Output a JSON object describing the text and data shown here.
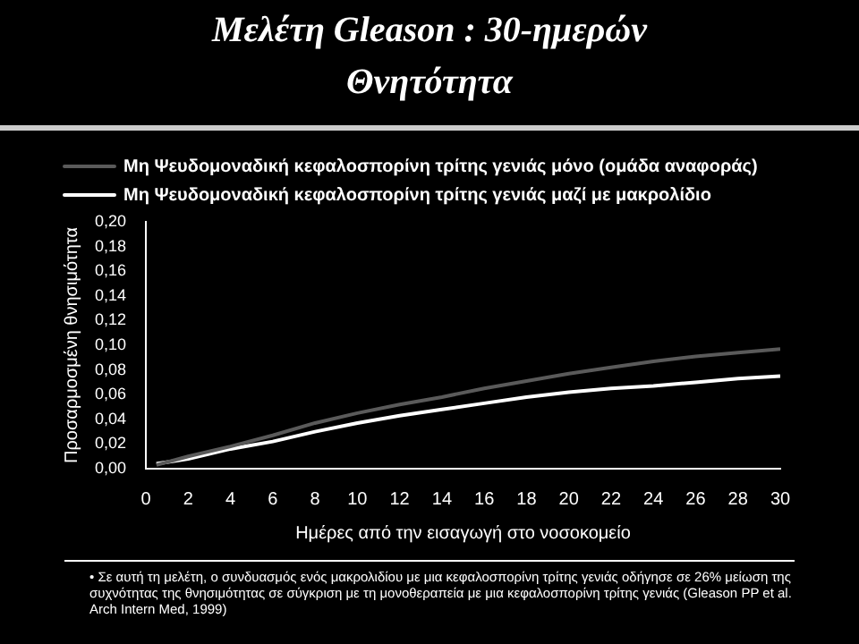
{
  "chart_data": {
    "type": "line",
    "title": "Μελέτη Gleason : 30-ημερών",
    "subtitle": "Θνητότητα",
    "xlabel": "Ημέρες από την εισαγωγή στο νοσοκομείο",
    "ylabel": "Προσαρμοσμένη θνησιμότητα",
    "annotations": [
      "• Σε αυτή τη μελέτη, ο συνδυασμός ενός μακρολιδίου με μια κεφαλοσπορίνη τρίτης γενιάς οδήγησε σε 26% μείωση της συχνότητας της θνησιμότητας σε σύγκριση με τη μονοθεραπεία με μια κεφαλοσπορίνη τρίτης γενιάς (Gleason PP et al. Arch Intern Med, 1999)"
    ],
    "x": [
      0.5,
      2,
      4,
      6,
      8,
      10,
      12,
      14,
      16,
      18,
      20,
      22,
      24,
      26,
      28,
      30
    ],
    "series": [
      {
        "name": "Μη Ψευδομοναδική κεφαλοσπορίνη τρίτης γενιάς μόνο (ομάδα αναφοράς)",
        "color": "#5a5a5a",
        "values": [
          0.003,
          0.01,
          0.018,
          0.027,
          0.037,
          0.045,
          0.052,
          0.058,
          0.065,
          0.071,
          0.077,
          0.082,
          0.087,
          0.091,
          0.094,
          0.097
        ]
      },
      {
        "name": "Μη Ψευδομοναδική κεφαλοσπορίνη τρίτης γενιάς μαζί με μακρολίδιο",
        "color": "#ffffff",
        "values": [
          0.004,
          0.008,
          0.016,
          0.022,
          0.03,
          0.037,
          0.043,
          0.048,
          0.053,
          0.058,
          0.062,
          0.065,
          0.067,
          0.07,
          0.073,
          0.075
        ]
      }
    ],
    "xlim": [
      0,
      30
    ],
    "xticks": [
      0,
      2,
      4,
      6,
      8,
      10,
      12,
      14,
      16,
      18,
      20,
      22,
      24,
      26,
      28,
      30
    ],
    "ylim": [
      0,
      0.2
    ],
    "yticks": [
      {
        "value": 0,
        "label": "0,00"
      },
      {
        "value": 0.02,
        "label": "0,02"
      },
      {
        "value": 0.04,
        "label": "0,04"
      },
      {
        "value": 0.06,
        "label": "0,06"
      },
      {
        "value": 0.08,
        "label": "0,08"
      },
      {
        "value": 0.1,
        "label": "0,10"
      },
      {
        "value": 0.12,
        "label": "0,12"
      },
      {
        "value": 0.14,
        "label": "0,14"
      },
      {
        "value": 0.16,
        "label": "0,16"
      },
      {
        "value": 0.18,
        "label": "0,18"
      },
      {
        "value": 0.2,
        "label": "0,20"
      }
    ],
    "grid": false,
    "legend": "top left",
    "marker": "none",
    "line_style": "solid"
  }
}
